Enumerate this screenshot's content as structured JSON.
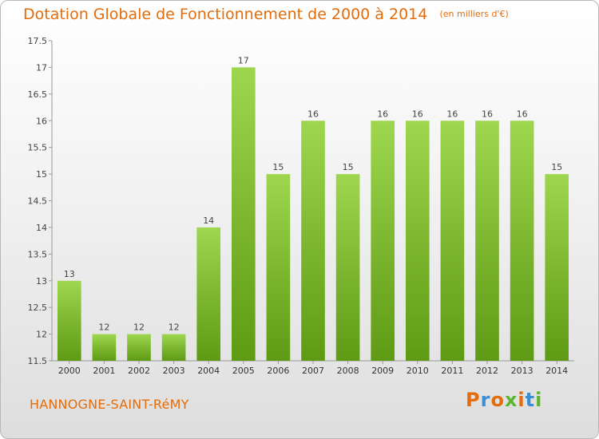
{
  "header": {
    "title": "Dotation Globale de Fonctionnement de 2000 à 2014",
    "unit": "(en milliers d'€)"
  },
  "footer": {
    "commune": "HANNOGNE-SAINT-RéMY",
    "logo_text": "Proxiti"
  },
  "colors": {
    "accent": "#e46c0a",
    "bar_top": "#9ed64f",
    "bar_bottom": "#5e9a14",
    "logo": [
      "#e46c0a",
      "#3a8fd4",
      "#e46c0a",
      "#5cb531",
      "#e46c0a",
      "#3a8fd4",
      "#5cb531"
    ]
  },
  "chart_data": {
    "type": "bar",
    "title": "Dotation Globale de Fonctionnement de 2000 à 2014",
    "subtitle": "(en milliers d'€)",
    "categories": [
      "2000",
      "2001",
      "2002",
      "2003",
      "2004",
      "2005",
      "2006",
      "2007",
      "2008",
      "2009",
      "2010",
      "2011",
      "2012",
      "2013",
      "2014"
    ],
    "values": [
      13,
      12,
      12,
      12,
      14,
      17,
      15,
      16,
      15,
      16,
      16,
      16,
      16,
      16,
      15
    ],
    "data_labels": [
      "13",
      "12",
      "12",
      "12",
      "14",
      "17",
      "15",
      "16",
      "15",
      "16",
      "16",
      "16",
      "16",
      "16",
      "15"
    ],
    "ylim": [
      11.5,
      17.5
    ],
    "yticks": [
      11.5,
      12,
      12.5,
      13,
      13.5,
      14,
      14.5,
      15,
      15.5,
      16,
      16.5,
      17,
      17.5
    ],
    "ytick_labels": [
      "11.5",
      "12",
      "12.5",
      "13",
      "13.5",
      "14",
      "14.5",
      "15",
      "15.5",
      "16",
      "16.5",
      "17",
      "17.5"
    ],
    "grid": false
  }
}
